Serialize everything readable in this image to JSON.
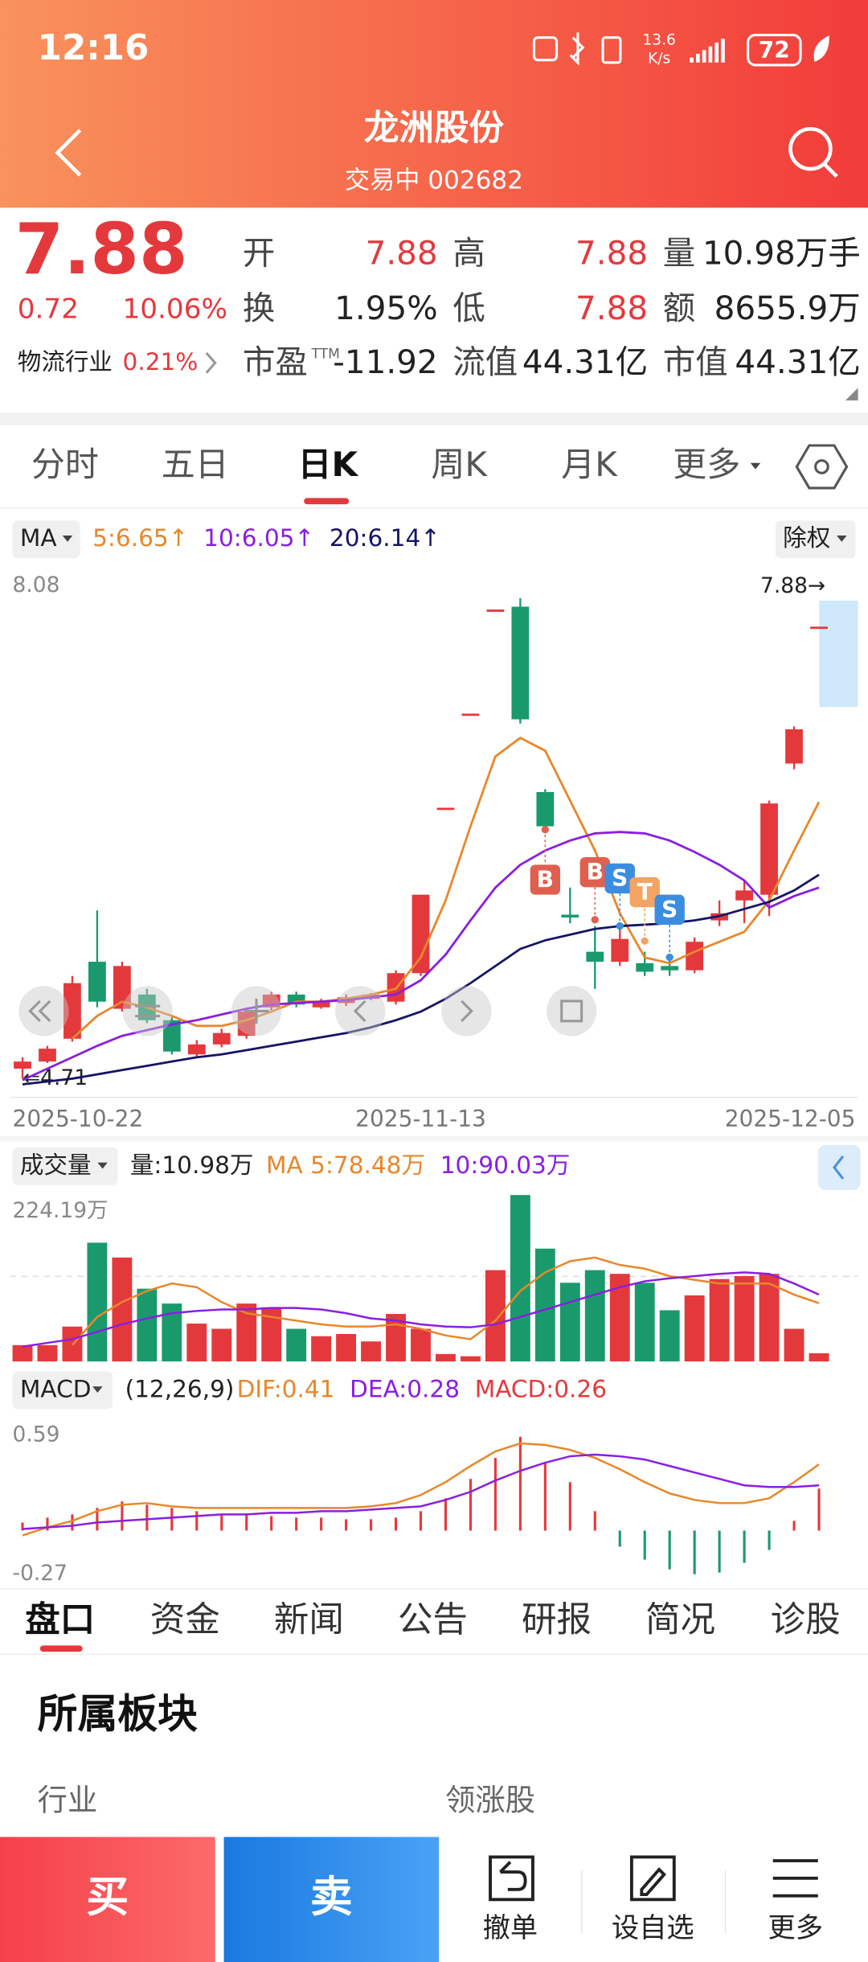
{
  "status_bar": {
    "time": "12:16",
    "speed": "13.6",
    "speed_unit": "K/s",
    "battery": "72"
  },
  "header": {
    "title": "龙洲股份",
    "subtitle": "交易中 002682"
  },
  "quote": {
    "price": "7.88",
    "change": "0.72",
    "change_pct": "10.06%",
    "industry": "物流行业",
    "industry_pct": "0.21%",
    "fields": [
      {
        "label": "开",
        "value": "7.88",
        "color": "#e4393c"
      },
      {
        "label": "高",
        "value": "7.88",
        "color": "#e4393c"
      },
      {
        "label": "量",
        "value": "10.98万手",
        "color": "#222222"
      },
      {
        "label": "换",
        "value": "1.95%",
        "color": "#222222"
      },
      {
        "label": "低",
        "value": "7.88",
        "color": "#e4393c"
      },
      {
        "label": "额",
        "value": "8655.9万",
        "color": "#222222"
      },
      {
        "label": "市盈",
        "sup": "TTM",
        "value": "-11.92",
        "color": "#222222"
      },
      {
        "label": "流值",
        "value": "44.31亿",
        "color": "#222222"
      },
      {
        "label": "市值",
        "value": "44.31亿",
        "color": "#222222"
      }
    ]
  },
  "period_tabs": {
    "items": [
      "分时",
      "五日",
      "日K",
      "周K",
      "月K",
      "更多"
    ],
    "active": 2
  },
  "kline": {
    "type": "candlestick",
    "ma_button": "MA",
    "adjust": "除权",
    "ylim": [
      4.71,
      8.08
    ],
    "yticks": [
      8.08
    ],
    "up_color": "#e4393c",
    "down_color": "#1a9a6c",
    "last_marker": {
      "value": 7.88,
      "label": "7.88→"
    },
    "low_marker": {
      "value": 4.71,
      "label": "⇐4.71"
    },
    "categories": [
      "2025-10-22",
      null,
      null,
      null,
      null,
      null,
      null,
      null,
      null,
      null,
      null,
      null,
      null,
      null,
      null,
      null,
      "2025-11-13",
      null,
      null,
      null,
      null,
      null,
      null,
      null,
      null,
      null,
      null,
      null,
      null,
      null,
      null,
      null,
      "2025-12-05"
    ],
    "open": [
      4.78,
      4.83,
      4.99,
      5.53,
      5.2,
      5.3,
      5.12,
      4.88,
      4.95,
      5.01,
      5.21,
      5.3,
      5.21,
      5.24,
      5.27,
      5.25,
      5.45,
      6.61,
      7.27,
      8.0,
      8.02,
      6.72,
      5.86,
      5.6,
      5.53,
      5.52,
      5.5,
      5.47,
      5.82,
      5.96,
      6.0,
      6.92,
      7.88
    ],
    "high": [
      4.86,
      4.94,
      5.43,
      5.89,
      5.53,
      5.34,
      5.14,
      4.98,
      5.06,
      5.2,
      5.32,
      5.32,
      5.27,
      5.3,
      5.31,
      5.47,
      6.0,
      6.61,
      7.27,
      8.0,
      8.08,
      6.74,
      6.05,
      5.78,
      5.8,
      5.6,
      5.55,
      5.7,
      5.96,
      6.1,
      6.66,
      7.18,
      7.88
    ],
    "low": [
      4.71,
      4.82,
      4.97,
      5.21,
      5.18,
      5.1,
      4.88,
      4.86,
      4.93,
      4.99,
      5.19,
      5.21,
      5.2,
      5.22,
      5.26,
      5.23,
      5.43,
      6.61,
      7.27,
      8.0,
      7.2,
      6.46,
      5.8,
      5.34,
      5.5,
      5.43,
      5.43,
      5.45,
      5.78,
      5.8,
      5.85,
      6.88,
      7.88
    ],
    "close": [
      4.83,
      4.92,
      5.38,
      5.25,
      5.5,
      5.12,
      4.9,
      4.95,
      5.03,
      5.18,
      5.3,
      5.23,
      5.25,
      5.28,
      5.3,
      5.45,
      6.0,
      6.61,
      7.27,
      8.0,
      7.23,
      6.48,
      5.84,
      5.53,
      5.69,
      5.46,
      5.47,
      5.67,
      5.87,
      6.03,
      6.64,
      7.16,
      7.88
    ],
    "ma": [
      {
        "name": "5:6.65↑",
        "color": "#e8872b",
        "values": [
          null,
          null,
          4.99,
          5.15,
          5.25,
          5.21,
          5.15,
          5.08,
          5.08,
          5.12,
          5.18,
          5.25,
          5.25,
          5.27,
          5.3,
          5.34,
          5.56,
          5.96,
          6.48,
          6.97,
          7.1,
          7.01,
          6.66,
          6.31,
          5.87,
          5.56,
          5.52,
          5.6,
          5.67,
          5.74,
          5.96,
          6.31,
          6.65
        ]
      },
      {
        "name": "10:6.05↑",
        "color": "#8a1ee0",
        "values": [
          4.7,
          4.78,
          4.86,
          4.94,
          5.01,
          5.05,
          5.09,
          5.12,
          5.16,
          5.2,
          5.23,
          5.24,
          5.25,
          5.26,
          5.28,
          5.3,
          5.4,
          5.58,
          5.82,
          6.05,
          6.21,
          6.31,
          6.38,
          6.43,
          6.44,
          6.43,
          6.38,
          6.3,
          6.21,
          6.1,
          5.91,
          5.99,
          6.05
        ]
      },
      {
        "name": "20:6.14↑",
        "color": "#141466",
        "values": [
          4.67,
          4.69,
          4.71,
          4.74,
          4.77,
          4.8,
          4.83,
          4.86,
          4.88,
          4.91,
          4.94,
          4.97,
          5.0,
          5.03,
          5.07,
          5.12,
          5.18,
          5.27,
          5.38,
          5.5,
          5.62,
          5.68,
          5.72,
          5.76,
          5.78,
          5.79,
          5.8,
          5.82,
          5.85,
          5.9,
          5.95,
          6.03,
          6.14
        ]
      }
    ],
    "signals": [
      {
        "label": "B",
        "color": "#e0604f",
        "index": 21
      },
      {
        "label": "B",
        "color": "#e0604f",
        "index": 23
      },
      {
        "label": "S",
        "color": "#3b8de0",
        "index": 24
      },
      {
        "label": "T",
        "color": "#f4a460",
        "index": 25
      },
      {
        "label": "S",
        "color": "#3b8de0",
        "index": 26
      }
    ]
  },
  "volume": {
    "button": "成交量",
    "label": "量:10.98万",
    "ylim": [
      0,
      224.19
    ],
    "yticks": [
      {
        "value": 224.19,
        "label": "224.19万"
      }
    ],
    "values": [
      22,
      22,
      47,
      160,
      140,
      98,
      78,
      51,
      44,
      78,
      73,
      44,
      34,
      37,
      27,
      64,
      44,
      10,
      7,
      123,
      224.19,
      152,
      106,
      123,
      118,
      106,
      69,
      89,
      111,
      115,
      118,
      44,
      10.98
    ],
    "ma": [
      {
        "name": "MA 5:78.48万",
        "color": "#e8872b",
        "values": [
          null,
          null,
          22,
          60,
          80,
          95,
          105,
          100,
          80,
          65,
          60,
          55,
          50,
          47,
          47,
          50,
          44,
          35,
          30,
          55,
          95,
          120,
          135,
          140,
          130,
          125,
          115,
          110,
          105,
          105,
          105,
          90,
          78.48
        ]
      },
      {
        "name": "10:90.03万",
        "color": "#8a1ee0",
        "values": [
          20,
          25,
          30,
          40,
          50,
          58,
          65,
          68,
          70,
          70,
          72,
          72,
          70,
          65,
          58,
          55,
          50,
          47,
          46,
          50,
          60,
          70,
          80,
          90,
          100,
          108,
          112,
          115,
          118,
          120,
          118,
          105,
          90.03
        ]
      }
    ]
  },
  "macd": {
    "button": "MACD",
    "params": "(12,26,9)",
    "ylim": [
      -0.27,
      0.59
    ],
    "yticks": [
      0.59,
      -0.27
    ],
    "lines": [
      {
        "name": "DIF:0.41",
        "color": "#e8872b",
        "values": [
          -0.03,
          0.02,
          0.06,
          0.12,
          0.16,
          0.17,
          0.15,
          0.14,
          0.14,
          0.14,
          0.14,
          0.14,
          0.14,
          0.14,
          0.15,
          0.17,
          0.22,
          0.3,
          0.4,
          0.49,
          0.54,
          0.53,
          0.5,
          0.45,
          0.38,
          0.3,
          0.23,
          0.19,
          0.17,
          0.17,
          0.2,
          0.3,
          0.41
        ]
      },
      {
        "name": "DEA:0.28",
        "color": "#8a1ee0",
        "values": [
          0.01,
          0.02,
          0.03,
          0.05,
          0.06,
          0.07,
          0.08,
          0.09,
          0.1,
          0.1,
          0.11,
          0.11,
          0.12,
          0.12,
          0.13,
          0.14,
          0.15,
          0.19,
          0.24,
          0.31,
          0.37,
          0.42,
          0.46,
          0.47,
          0.46,
          0.44,
          0.4,
          0.36,
          0.32,
          0.28,
          0.27,
          0.27,
          0.28
        ]
      }
    ],
    "hist": {
      "name": "MACD:0.26",
      "color": "#e4393c",
      "down_color": "#1a9a6c",
      "values": [
        0.05,
        0.08,
        0.1,
        0.14,
        0.18,
        0.16,
        0.14,
        0.12,
        0.1,
        0.1,
        0.09,
        0.08,
        0.08,
        0.07,
        0.07,
        0.08,
        0.12,
        0.2,
        0.32,
        0.45,
        0.58,
        0.42,
        0.3,
        0.12,
        -0.1,
        -0.18,
        -0.24,
        -0.27,
        -0.26,
        -0.2,
        -0.12,
        0.06,
        0.26
      ]
    }
  },
  "detail_tabs": {
    "items": [
      "盘口",
      "资金",
      "新闻",
      "公告",
      "研报",
      "简况",
      "诊股"
    ],
    "active": 0
  },
  "section": {
    "title": "所属板块",
    "columns": [
      "行业",
      "领涨股"
    ]
  },
  "footer": {
    "buy": "买",
    "sell": "卖",
    "actions": [
      "撤单",
      "设自选",
      "更多"
    ]
  }
}
